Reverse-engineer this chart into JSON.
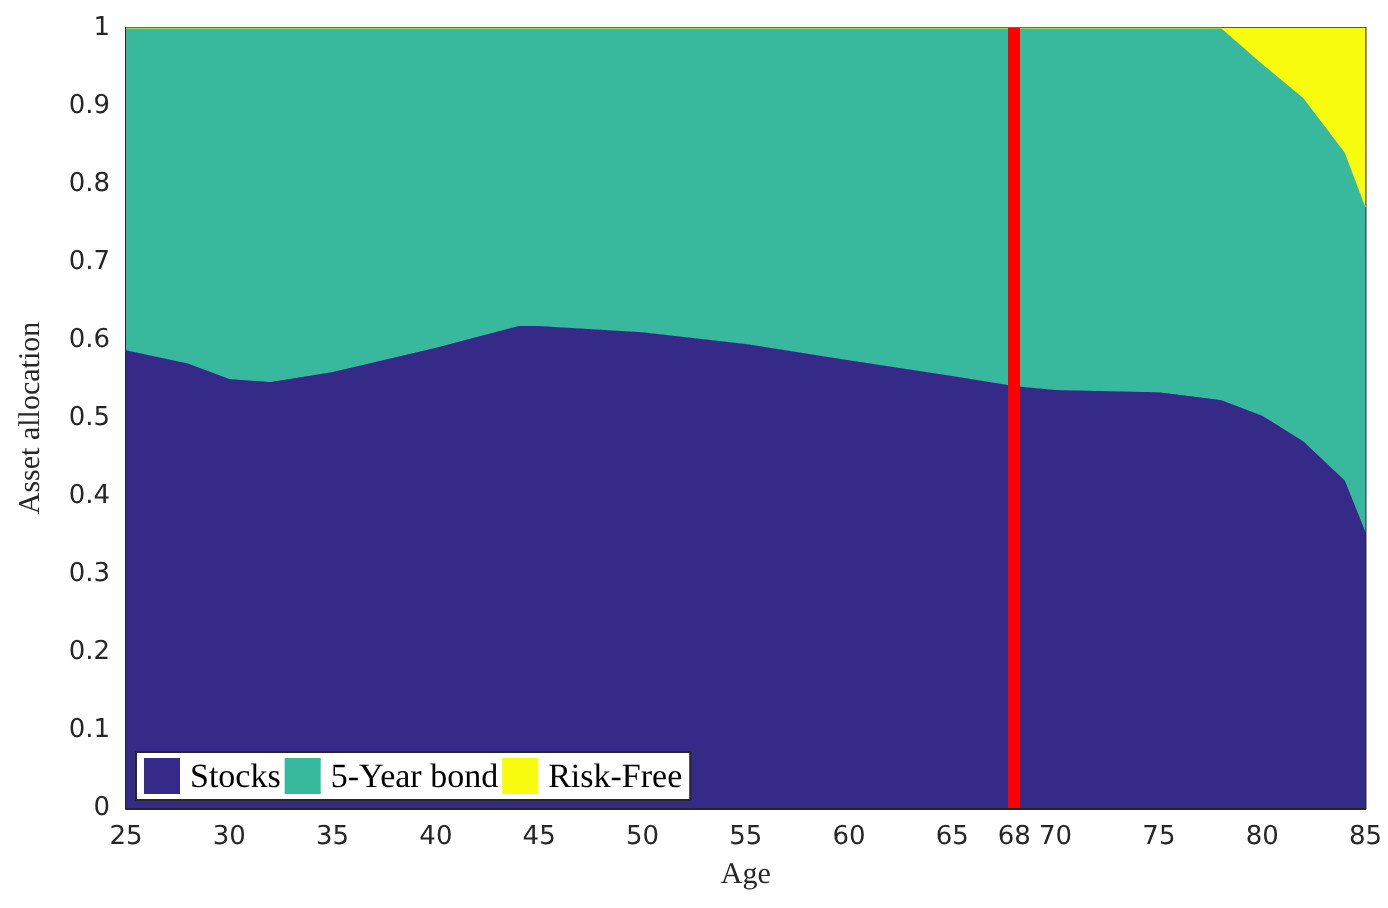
{
  "chart_data": {
    "type": "area",
    "stacked": true,
    "xlabel": "Age",
    "ylabel": "Asset allocation",
    "x": [
      25,
      28,
      30,
      32,
      35,
      40,
      44,
      45,
      50,
      55,
      60,
      65,
      68,
      70,
      75,
      78,
      80,
      82,
      84,
      85
    ],
    "series": [
      {
        "name": "Stocks",
        "color": "#352a87",
        "values": [
          0.587,
          0.57,
          0.55,
          0.546,
          0.559,
          0.59,
          0.618,
          0.618,
          0.61,
          0.595,
          0.574,
          0.554,
          0.541,
          0.536,
          0.533,
          0.523,
          0.503,
          0.47,
          0.42,
          0.354
        ]
      },
      {
        "name": "5-Year bond",
        "color": "#38b99e",
        "values": [
          0.413,
          0.43,
          0.45,
          0.454,
          0.441,
          0.41,
          0.382,
          0.382,
          0.39,
          0.405,
          0.426,
          0.446,
          0.459,
          0.464,
          0.467,
          0.477,
          0.451,
          0.44,
          0.42,
          0.416
        ]
      },
      {
        "name": "Risk-Free",
        "color": "#f9fb0e",
        "values": [
          0,
          0,
          0,
          0,
          0,
          0,
          0,
          0,
          0,
          0,
          0,
          0,
          0,
          0,
          0,
          0,
          0.046,
          0.09,
          0.16,
          0.23
        ]
      }
    ],
    "xlim": [
      25,
      85
    ],
    "xticks": [
      25,
      30,
      35,
      40,
      45,
      50,
      55,
      60,
      65,
      68,
      70,
      75,
      80,
      85
    ],
    "ylim": [
      0,
      1
    ],
    "yticks": [
      0,
      0.1,
      0.2,
      0.3,
      0.4,
      0.5,
      0.6,
      0.7,
      0.8,
      0.9,
      1
    ],
    "ref_lines": [
      {
        "axis": "x",
        "value": 68,
        "color": "#ff0000"
      }
    ],
    "legend": "bottom left",
    "grid": false
  }
}
